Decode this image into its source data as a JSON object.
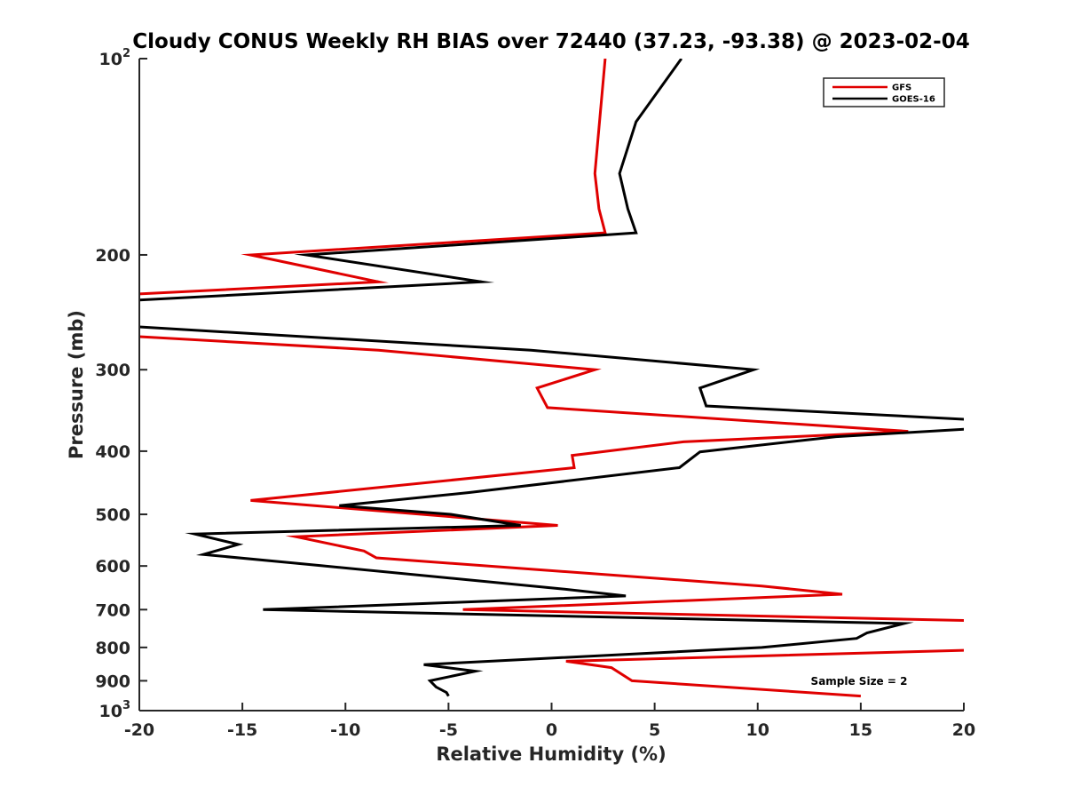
{
  "chart_data": {
    "type": "line",
    "orientation": "profile",
    "title": "Cloudy CONUS Weekly RH BIAS over 72440 (37.23, -93.38) @ 2023-02-04",
    "xlabel": "Relative Humidity (%)",
    "ylabel": "Pressure (mb)",
    "xlim": [
      -20,
      20
    ],
    "ylim": [
      100,
      1000
    ],
    "y_scale": "log",
    "y_reversed": true,
    "grid": false,
    "legend_position": "top-right",
    "x_ticks": [
      "-20",
      "-15",
      "-10",
      "-5",
      "0",
      "5",
      "10",
      "15",
      "20"
    ],
    "y_ticks": [
      {
        "value": 100,
        "base": "10",
        "exp": "2"
      },
      {
        "value": 200,
        "label": "200"
      },
      {
        "value": 300,
        "label": "300"
      },
      {
        "value": 400,
        "label": "400"
      },
      {
        "value": 500,
        "label": "500"
      },
      {
        "value": 600,
        "label": "600"
      },
      {
        "value": 700,
        "label": "700"
      },
      {
        "value": 800,
        "label": "800"
      },
      {
        "value": 900,
        "label": "900"
      },
      {
        "value": 1000,
        "base": "10",
        "exp": "3"
      }
    ],
    "annotation": "Sample Size = 2",
    "series": [
      {
        "name": "GFS",
        "color": "#e00000",
        "points": [
          {
            "x": 2.6,
            "y": 100
          },
          {
            "x": 2.1,
            "y": 150
          },
          {
            "x": 2.3,
            "y": 170
          },
          {
            "x": 2.6,
            "y": 185
          },
          {
            "x": -14.6,
            "y": 200
          },
          {
            "x": -8.4,
            "y": 220
          },
          {
            "x": -20.5,
            "y": 230
          },
          {
            "x": -20.8,
            "y": 266
          },
          {
            "x": -8.4,
            "y": 280
          },
          {
            "x": 2.1,
            "y": 300
          },
          {
            "x": -0.7,
            "y": 320
          },
          {
            "x": -0.2,
            "y": 343
          },
          {
            "x": 17.3,
            "y": 373
          },
          {
            "x": 6.4,
            "y": 387
          },
          {
            "x": 1.0,
            "y": 406
          },
          {
            "x": 1.1,
            "y": 424
          },
          {
            "x": -14.6,
            "y": 476
          },
          {
            "x": 0.3,
            "y": 520
          },
          {
            "x": -12.4,
            "y": 541
          },
          {
            "x": -9.1,
            "y": 569
          },
          {
            "x": -8.5,
            "y": 583
          },
          {
            "x": 10.2,
            "y": 644
          },
          {
            "x": 14.1,
            "y": 663
          },
          {
            "x": -4.3,
            "y": 700
          },
          {
            "x": 20.5,
            "y": 728
          },
          {
            "x": 20.8,
            "y": 807
          },
          {
            "x": 0.7,
            "y": 840
          },
          {
            "x": 2.9,
            "y": 859
          },
          {
            "x": 3.9,
            "y": 900
          },
          {
            "x": 15.0,
            "y": 950
          }
        ]
      },
      {
        "name": "GOES-16",
        "color": "#000000",
        "points": [
          {
            "x": 6.3,
            "y": 100
          },
          {
            "x": 4.1,
            "y": 125
          },
          {
            "x": 3.3,
            "y": 150
          },
          {
            "x": 3.7,
            "y": 170
          },
          {
            "x": 4.1,
            "y": 185
          },
          {
            "x": -11.9,
            "y": 200
          },
          {
            "x": -3.4,
            "y": 220
          },
          {
            "x": -20.5,
            "y": 235
          },
          {
            "x": -20.8,
            "y": 257
          },
          {
            "x": -1.0,
            "y": 280
          },
          {
            "x": 9.8,
            "y": 300
          },
          {
            "x": 7.2,
            "y": 320
          },
          {
            "x": 7.5,
            "y": 341
          },
          {
            "x": 20.5,
            "y": 358
          },
          {
            "x": 20.8,
            "y": 369
          },
          {
            "x": 13.8,
            "y": 380
          },
          {
            "x": 7.2,
            "y": 401
          },
          {
            "x": 6.2,
            "y": 424
          },
          {
            "x": -4.0,
            "y": 463
          },
          {
            "x": -10.3,
            "y": 485
          },
          {
            "x": -4.9,
            "y": 500
          },
          {
            "x": -1.5,
            "y": 520
          },
          {
            "x": -17.3,
            "y": 536
          },
          {
            "x": -15.2,
            "y": 556
          },
          {
            "x": -16.9,
            "y": 576
          },
          {
            "x": -11.7,
            "y": 597
          },
          {
            "x": 0.4,
            "y": 650
          },
          {
            "x": 3.6,
            "y": 667
          },
          {
            "x": -14.0,
            "y": 700
          },
          {
            "x": 17.1,
            "y": 735
          },
          {
            "x": 15.3,
            "y": 760
          },
          {
            "x": 14.8,
            "y": 775
          },
          {
            "x": 10.2,
            "y": 800
          },
          {
            "x": -6.2,
            "y": 850
          },
          {
            "x": -3.7,
            "y": 870
          },
          {
            "x": -5.9,
            "y": 900
          },
          {
            "x": -5.6,
            "y": 920
          },
          {
            "x": -5.1,
            "y": 938
          },
          {
            "x": -5.0,
            "y": 950
          }
        ]
      }
    ]
  }
}
